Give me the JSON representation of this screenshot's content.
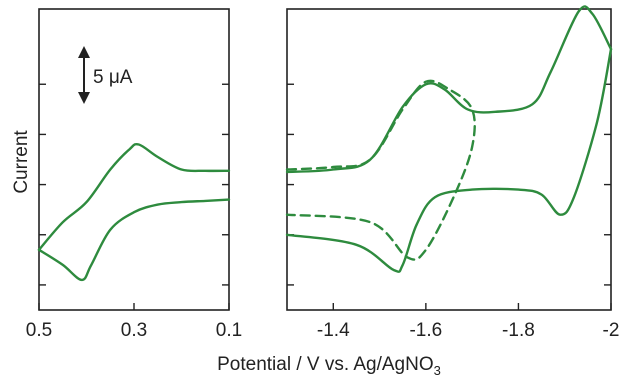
{
  "chart_data": {
    "type": "line",
    "ylabel": "Current",
    "xlabel_main": "Potential / V vs. Ag/AgNO",
    "xlabel_subscript": "3",
    "trace_color": "#2e8b3e",
    "scale_bar": {
      "label": "5 μA",
      "value": 5,
      "unit": "μA"
    },
    "y_ticks": [
      -2,
      0,
      2,
      4,
      6
    ],
    "panels": [
      {
        "id": "left",
        "xlim": [
          0.5,
          0.1
        ],
        "ylim": [
          -3,
          9
        ],
        "xtick_labels": [
          "0.5",
          "0.3",
          "0.1"
        ],
        "xtick_values": [
          0.5,
          0.3,
          0.1
        ],
        "series": [
          {
            "style": "solid",
            "points": [
              [
                0.5,
                -0.6
              ],
              [
                0.45,
                0.5
              ],
              [
                0.4,
                1.3
              ],
              [
                0.35,
                2.6
              ],
              [
                0.31,
                3.4
              ],
              [
                0.29,
                3.6
              ],
              [
                0.25,
                3.1
              ],
              [
                0.2,
                2.6
              ],
              [
                0.15,
                2.55
              ],
              [
                0.1,
                2.55
              ]
            ]
          },
          {
            "style": "solid",
            "points": [
              [
                0.1,
                1.4
              ],
              [
                0.15,
                1.35
              ],
              [
                0.2,
                1.3
              ],
              [
                0.25,
                1.2
              ],
              [
                0.3,
                0.9
              ],
              [
                0.35,
                0.2
              ],
              [
                0.39,
                -1.2
              ],
              [
                0.41,
                -1.8
              ],
              [
                0.45,
                -1.2
              ],
              [
                0.5,
                -0.6
              ]
            ]
          }
        ]
      },
      {
        "id": "right",
        "xlim": [
          -1.3,
          -2.0
        ],
        "ylim": [
          -3,
          9
        ],
        "xtick_labels": [
          "-1.4",
          "-1.6",
          "-1.8",
          "-2"
        ],
        "xtick_values": [
          -1.4,
          -1.6,
          -1.8,
          -2.0
        ],
        "series": [
          {
            "style": "solid",
            "points": [
              [
                -1.3,
                2.5
              ],
              [
                -1.4,
                2.6
              ],
              [
                -1.48,
                3.0
              ],
              [
                -1.55,
                5.1
              ],
              [
                -1.6,
                6.0
              ],
              [
                -1.64,
                5.8
              ],
              [
                -1.69,
                5.0
              ],
              [
                -1.75,
                4.9
              ],
              [
                -1.83,
                5.2
              ],
              [
                -1.87,
                6.5
              ],
              [
                -1.93,
                8.9
              ],
              [
                -1.96,
                8.8
              ],
              [
                -2.0,
                7.4
              ]
            ]
          },
          {
            "style": "solid",
            "points": [
              [
                -2.0,
                7.4
              ],
              [
                -1.97,
                4.5
              ],
              [
                -1.92,
                1.5
              ],
              [
                -1.89,
                0.8
              ],
              [
                -1.85,
                1.6
              ],
              [
                -1.8,
                1.8
              ],
              [
                -1.7,
                1.8
              ],
              [
                -1.62,
                1.5
              ],
              [
                -1.58,
                0.4
              ],
              [
                -1.55,
                -1.2
              ],
              [
                -1.53,
                -1.4
              ],
              [
                -1.45,
                -0.4
              ],
              [
                -1.3,
                0.0
              ]
            ]
          },
          {
            "style": "dashed",
            "points": [
              [
                -1.3,
                2.6
              ],
              [
                -1.4,
                2.7
              ],
              [
                -1.48,
                3.0
              ],
              [
                -1.55,
                5.0
              ],
              [
                -1.6,
                6.1
              ],
              [
                -1.65,
                5.8
              ],
              [
                -1.7,
                5.0
              ],
              [
                -1.7,
                3.5
              ],
              [
                -1.66,
                1.5
              ],
              [
                -1.6,
                -0.6
              ],
              [
                -1.56,
                -0.9
              ],
              [
                -1.48,
                0.5
              ],
              [
                -1.3,
                0.8
              ]
            ]
          }
        ]
      }
    ]
  }
}
